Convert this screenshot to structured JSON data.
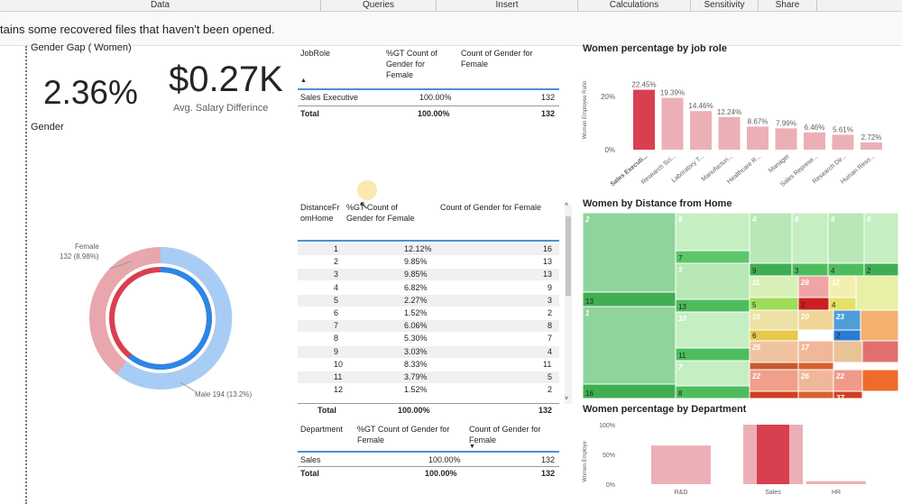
{
  "ribbon": {
    "tabs": [
      "Data",
      "Queries",
      "Insert",
      "Calculations",
      "Sensitivity",
      "Share"
    ]
  },
  "infobar": {
    "message": "tains some recovered files that haven't been opened."
  },
  "kpi": {
    "gap_title": "Gender Gap ( Women)",
    "gap_value": "2.36%",
    "salary_value": "$0.27K",
    "salary_label": "Avg. Salary Differince",
    "gender_label": "Gender"
  },
  "donut": {
    "female_label": "Female",
    "female_detail": "132 (8.98%)",
    "male_label": "Male 194 (13.2%)",
    "female_color": "#e8a7ad",
    "male_color": "#a8cdf5"
  },
  "jobrole_table": {
    "headers": [
      "JobRole",
      "%GT Count of Gender for Female",
      "Count of Gender for Female"
    ],
    "rows": [
      [
        "Sales Executive",
        "100.00%",
        "132"
      ]
    ],
    "total": [
      "Total",
      "100.00%",
      "132"
    ]
  },
  "distance_table": {
    "headers": [
      "DistanceFromHome",
      "%GT Count of Gender for Female",
      "Count of Gender for Female"
    ],
    "rows": [
      [
        "1",
        "12.12%",
        "16"
      ],
      [
        "2",
        "9.85%",
        "13"
      ],
      [
        "3",
        "9.85%",
        "13"
      ],
      [
        "4",
        "6.82%",
        "9"
      ],
      [
        "5",
        "2.27%",
        "3"
      ],
      [
        "6",
        "1.52%",
        "2"
      ],
      [
        "7",
        "6.06%",
        "8"
      ],
      [
        "8",
        "5.30%",
        "7"
      ],
      [
        "9",
        "3.03%",
        "4"
      ],
      [
        "10",
        "8.33%",
        "11"
      ],
      [
        "11",
        "3.79%",
        "5"
      ],
      [
        "12",
        "1.52%",
        "2"
      ]
    ],
    "total": [
      "Total",
      "100.00%",
      "132"
    ]
  },
  "department_table": {
    "headers": [
      "Department",
      "%GT Count of Gender for Female",
      "Count of Gender for Female"
    ],
    "rows": [
      [
        "Sales",
        "100.00%",
        "132"
      ]
    ],
    "total": [
      "Total",
      "100.00%",
      "132"
    ]
  },
  "jobrole_chart_title": "Women percentage by job role",
  "distance_chart_title": "Women by Distance from Home",
  "dept_chart_title": "Women percentage by Department",
  "chart_data": [
    {
      "type": "bar",
      "title": "Women percentage by job role",
      "ylabel": "Women Employee Ratio",
      "categories": [
        "Sales Executi...",
        "Research Sci...",
        "Laboratory T...",
        "Manufacturi...",
        "Healthcare R...",
        "Manager",
        "Sales Represe...",
        "Research Dir...",
        "Human Reso..."
      ],
      "values": [
        22.45,
        19.39,
        14.46,
        12.24,
        8.67,
        7.99,
        6.46,
        5.61,
        2.72
      ],
      "data_labels": [
        "22.45%",
        "19.39%",
        "14.46%",
        "12.24%",
        "8.67%",
        "7.99%",
        "6.46%",
        "5.61%",
        "2.72%"
      ],
      "yticks": [
        "20%",
        "0%"
      ],
      "ylim": [
        0,
        25
      ],
      "highlight_color": "#d9404f",
      "base_color": "#ebb0b6"
    },
    {
      "type": "bar",
      "title": "Women percentage by Department",
      "ylabel": "Women Employe",
      "categories": [
        "R&D",
        "Sales",
        "HR"
      ],
      "values": [
        65,
        100,
        5
      ],
      "yticks": [
        "100%",
        "50%",
        "0%"
      ],
      "ylim": [
        0,
        100
      ],
      "highlight_color": "#d9404f",
      "base_color": "#ebb0b6"
    },
    {
      "type": "heatmap",
      "title": "Women by Distance from Home",
      "tiles": [
        {
          "label": "2",
          "value": ""
        },
        {
          "label": "13",
          "value": "13"
        },
        {
          "label": "1",
          "value": ""
        },
        {
          "label": "16",
          "value": "16"
        },
        {
          "label": "8",
          "value": ""
        },
        {
          "label": "7",
          "value": "7"
        },
        {
          "label": "3",
          "value": ""
        },
        {
          "label": "13",
          "value": "13"
        },
        {
          "label": "10",
          "value": ""
        },
        {
          "label": "11",
          "value": "11"
        },
        {
          "label": "7",
          "value": ""
        },
        {
          "label": "8",
          "value": "8"
        },
        {
          "label": "4",
          "value": ""
        },
        {
          "label": "9",
          "value": "9"
        },
        {
          "label": "6",
          "value": ""
        },
        {
          "label": "3",
          "value": "3"
        },
        {
          "label": "9",
          "value": ""
        },
        {
          "label": "4",
          "value": "4"
        },
        {
          "label": "6",
          "value": ""
        },
        {
          "label": "2",
          "value": "2"
        },
        {
          "label": "11",
          "value": ""
        },
        {
          "label": "5",
          "value": "5"
        },
        {
          "label": "28",
          "value": ""
        },
        {
          "label": "2",
          "value": "2"
        },
        {
          "label": "12",
          "value": ""
        },
        {
          "label": "4",
          "value": "4"
        },
        {
          "label": "15",
          "value": ""
        },
        {
          "label": "6",
          "value": "6"
        },
        {
          "label": "20",
          "value": ""
        },
        {
          "label": "23",
          "value": ""
        },
        {
          "label": "2",
          "value": "2"
        },
        {
          "label": "25",
          "value": ""
        },
        {
          "label": "17",
          "value": ""
        },
        {
          "label": "22",
          "value": ""
        },
        {
          "label": "26",
          "value": ""
        },
        {
          "label": "22",
          "value": ""
        },
        {
          "label": "27",
          "value": ""
        }
      ]
    }
  ]
}
